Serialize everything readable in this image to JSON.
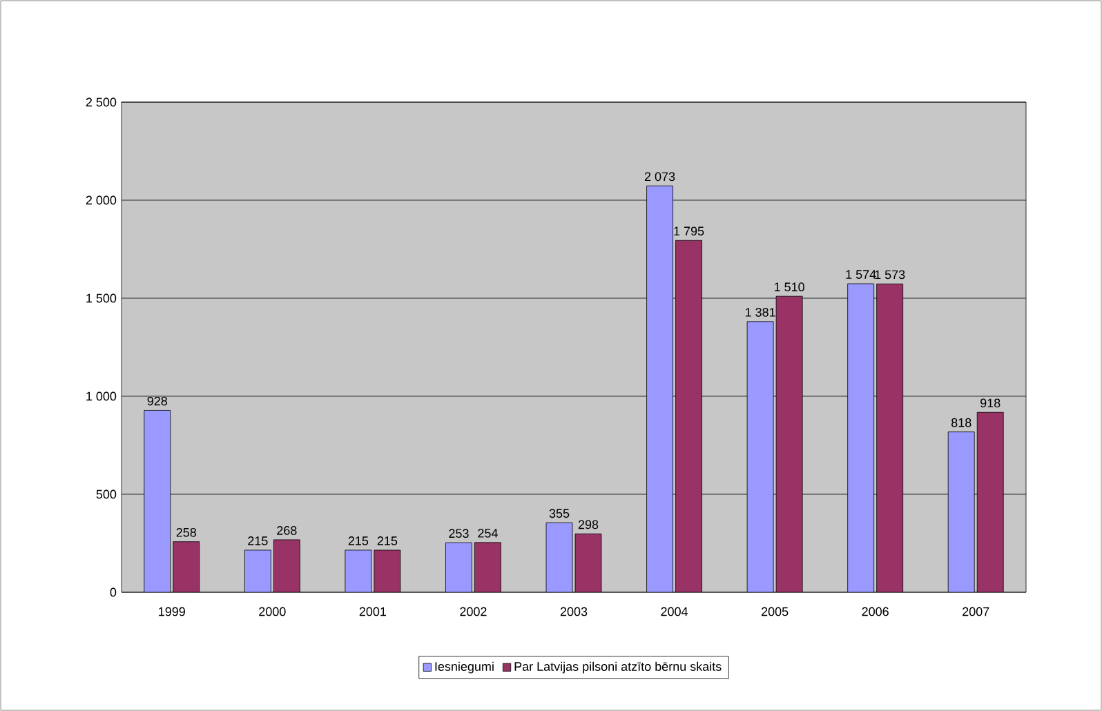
{
  "chart_data": {
    "type": "bar",
    "categories": [
      "1999",
      "2000",
      "2001",
      "2002",
      "2003",
      "2004",
      "2005",
      "2006",
      "2007"
    ],
    "series": [
      {
        "name": "Iesniegumi",
        "color": "#9999ff",
        "values": [
          928,
          215,
          215,
          253,
          355,
          2073,
          1381,
          1574,
          818
        ],
        "value_labels": [
          "928",
          "215",
          "215",
          "253",
          "355",
          "2 073",
          "1 381",
          "1 574",
          "818"
        ]
      },
      {
        "name": "Par Latvijas pilsoni atzīto bērnu skaits",
        "color": "#993366",
        "values": [
          258,
          268,
          215,
          254,
          298,
          1795,
          1510,
          1573,
          918
        ],
        "value_labels": [
          "258",
          "268",
          "215",
          "254",
          "298",
          "1 795",
          "1 510",
          "1 573",
          "918"
        ]
      }
    ],
    "ylim": [
      0,
      2500
    ],
    "yticks": [
      {
        "value": 0,
        "label": "0"
      },
      {
        "value": 500,
        "label": "500"
      },
      {
        "value": 1000,
        "label": "1 000"
      },
      {
        "value": 1500,
        "label": "1 500"
      },
      {
        "value": 2000,
        "label": "2 000"
      },
      {
        "value": 2500,
        "label": "2 500"
      }
    ],
    "grid": "y",
    "legend": "bottom"
  }
}
